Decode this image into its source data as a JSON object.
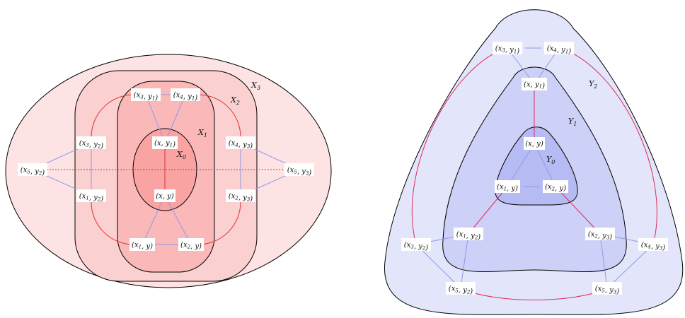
{
  "left_diagram": {
    "regions": [
      "X_0",
      "X_1",
      "X_2",
      "X_3"
    ],
    "region_labels": [
      {
        "base": "X",
        "sub": "0"
      },
      {
        "base": "X",
        "sub": "1"
      },
      {
        "base": "X",
        "sub": "2"
      },
      {
        "base": "X",
        "sub": "3"
      }
    ],
    "colors": {
      "X_3_fill": "#fde3e3",
      "X_2_fill": "#fbd0d0",
      "X_1_fill": "#fab8b8",
      "X_0_fill": "#f9a3a3",
      "red_edge": "#e03030",
      "blue_edge": "#8f9ae6"
    },
    "nodes": [
      {
        "id": "L_x3y1",
        "a": "x",
        "as": "3",
        "b": "y",
        "bs": "1"
      },
      {
        "id": "L_x4y1",
        "a": "x",
        "as": "4",
        "b": "y",
        "bs": "1"
      },
      {
        "id": "L_xy1",
        "a": "x",
        "as": "",
        "b": "y",
        "bs": "1"
      },
      {
        "id": "L_x3y2",
        "a": "x",
        "as": "3",
        "b": "y",
        "bs": "2"
      },
      {
        "id": "L_x4y3",
        "a": "x",
        "as": "4",
        "b": "y",
        "bs": "3"
      },
      {
        "id": "L_x5y2",
        "a": "x",
        "as": "5",
        "b": "y",
        "bs": "2"
      },
      {
        "id": "L_x5y3",
        "a": "x",
        "as": "5",
        "b": "y",
        "bs": "3"
      },
      {
        "id": "L_x1y2",
        "a": "x",
        "as": "1",
        "b": "y",
        "bs": "2"
      },
      {
        "id": "L_xy",
        "a": "x",
        "as": "",
        "b": "y",
        "bs": ""
      },
      {
        "id": "L_x2y3",
        "a": "x",
        "as": "2",
        "b": "y",
        "bs": "3"
      },
      {
        "id": "L_x1y",
        "a": "x",
        "as": "1",
        "b": "y",
        "bs": ""
      },
      {
        "id": "L_x2y",
        "a": "x",
        "as": "2",
        "b": "y",
        "bs": ""
      }
    ]
  },
  "right_diagram": {
    "regions": [
      "Y_0",
      "Y_1",
      "Y_2"
    ],
    "region_labels": [
      {
        "base": "Y",
        "sub": "0"
      },
      {
        "base": "Y",
        "sub": "1"
      },
      {
        "base": "Y",
        "sub": "2"
      }
    ],
    "colors": {
      "Y_2_fill": "#e3e5fb",
      "Y_1_fill": "#cdd0f7",
      "Y_0_fill": "#b7bbf3",
      "red_edge": "#dc2d5a",
      "blue_edge": "#8f9ae6"
    },
    "nodes": [
      {
        "id": "R_x3y1",
        "a": "x",
        "as": "3",
        "b": "y",
        "bs": "1"
      },
      {
        "id": "R_x4y1",
        "a": "x",
        "as": "4",
        "b": "y",
        "bs": "1"
      },
      {
        "id": "R_xy1",
        "a": "x",
        "as": "",
        "b": "y",
        "bs": "1"
      },
      {
        "id": "R_xy",
        "a": "x",
        "as": "",
        "b": "y",
        "bs": ""
      },
      {
        "id": "R_x1y",
        "a": "x",
        "as": "1",
        "b": "y",
        "bs": ""
      },
      {
        "id": "R_x2y",
        "a": "x",
        "as": "2",
        "b": "y",
        "bs": ""
      },
      {
        "id": "R_x1y2",
        "a": "x",
        "as": "1",
        "b": "y",
        "bs": "2"
      },
      {
        "id": "R_x2y3",
        "a": "x",
        "as": "2",
        "b": "y",
        "bs": "3"
      },
      {
        "id": "R_x3y2",
        "a": "x",
        "as": "3",
        "b": "y",
        "bs": "2"
      },
      {
        "id": "R_x4y3",
        "a": "x",
        "as": "4",
        "b": "y",
        "bs": "3"
      },
      {
        "id": "R_x5y2",
        "a": "x",
        "as": "5",
        "b": "y",
        "bs": "2"
      },
      {
        "id": "R_x5y3",
        "a": "x",
        "as": "5",
        "b": "y",
        "bs": "3"
      }
    ]
  }
}
